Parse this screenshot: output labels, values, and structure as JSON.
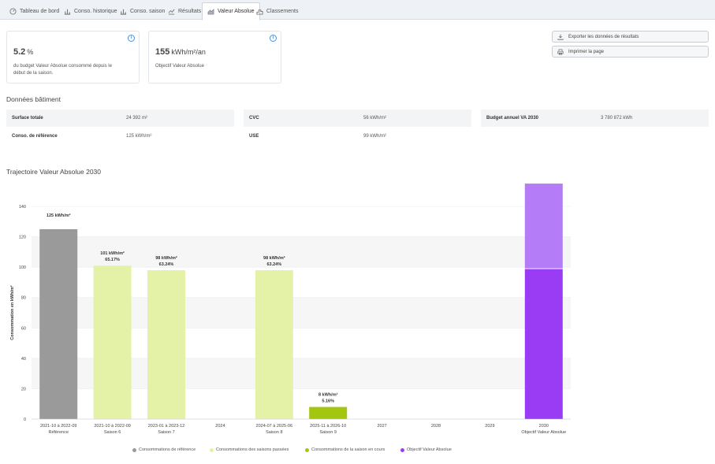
{
  "tabs": [
    {
      "label": "Tableau de bord",
      "icon": "dashboard-icon",
      "active": false
    },
    {
      "label": "Conso. historique",
      "icon": "bar-chart-icon",
      "active": false
    },
    {
      "label": "Conso. saison",
      "icon": "bar-chart-icon",
      "active": false
    },
    {
      "label": "Résultats",
      "icon": "line-chart-icon",
      "active": false
    },
    {
      "label": "Valeur Absolue",
      "icon": "area-chart-icon",
      "active": true
    },
    {
      "label": "Classements",
      "icon": "podium-icon",
      "active": false
    }
  ],
  "kpis": [
    {
      "value": "5.2",
      "unit": "%",
      "desc_line1": "du budget Valeur Absolue consommé depuis le",
      "desc_line2": "début de la saison."
    },
    {
      "value": "155",
      "unit": "kWh/m²/an",
      "desc_line1": "Objectif Valeur Absolue",
      "desc_line2": ""
    }
  ],
  "actions": {
    "export_label": "Exporter les données de résultats",
    "print_label": "Imprimer la page"
  },
  "building": {
    "title": "Données bâtiment",
    "rows": [
      [
        {
          "key": "Surface totale",
          "value": "24 392 m²"
        },
        {
          "key": "CVC",
          "value": "56 kWh/m²"
        },
        {
          "key": "Budget annuel VA 2030",
          "value": "3 780 872 kWh"
        }
      ],
      [
        {
          "key": "Conso. de référence",
          "value": "125 kWh/m²"
        },
        {
          "key": "USE",
          "value": "99 kWh/m²"
        }
      ]
    ]
  },
  "chart_title": "Trajectoire Valeur Absolue 2030",
  "colors": {
    "reference": "#9a9a9a",
    "past": "#e4f2a8",
    "current": "#a3c611",
    "objective": "#9b3cf5",
    "objective_light": "#b47df7"
  },
  "chart_data": {
    "type": "bar",
    "ylabel": "Consommation en kWh/m²",
    "ylim": [
      0,
      140
    ],
    "yticks": [
      0,
      20,
      40,
      60,
      80,
      100,
      120,
      140
    ],
    "categories": [
      {
        "line1": "2021-10 à 2022-09",
        "line2": "Référence"
      },
      {
        "line1": "2021-10 à 2022-09",
        "line2": "Saison 6"
      },
      {
        "line1": "2023-01 à 2023-12",
        "line2": "Saison 7"
      },
      {
        "line1": "2024",
        "line2": ""
      },
      {
        "line1": "2024-07 à 2025-06",
        "line2": "Saison 8"
      },
      {
        "line1": "2025-11 à 2026-10",
        "line2": "Saison 9"
      },
      {
        "line1": "2027",
        "line2": ""
      },
      {
        "line1": "2028",
        "line2": ""
      },
      {
        "line1": "2029",
        "line2": ""
      },
      {
        "line1": "2030",
        "line2": "Objectif Valeur Absolue"
      }
    ],
    "bars": [
      {
        "index": 0,
        "value": 125,
        "kind": "reference",
        "label1": "125 kWh/m²",
        "label2": ""
      },
      {
        "index": 1,
        "value": 101,
        "kind": "past",
        "label1": "101 kWh/m²",
        "label2": "65.17%"
      },
      {
        "index": 2,
        "value": 98,
        "kind": "past",
        "label1": "98 kWh/m²",
        "label2": "63.24%"
      },
      {
        "index": 4,
        "value": 98,
        "kind": "past",
        "label1": "98 kWh/m²",
        "label2": "63.24%"
      },
      {
        "index": 5,
        "value": 8,
        "kind": "current",
        "label1": "8 kWh/m²",
        "label2": "5.16%"
      },
      {
        "index": 9,
        "value": 99,
        "top": 155,
        "kind": "objective",
        "label1": "",
        "label2": ""
      }
    ],
    "legend": [
      {
        "label": "Consommations de référence",
        "kind": "reference"
      },
      {
        "label": "Consommations des saisons passées",
        "kind": "past"
      },
      {
        "label": "Consommations de la saison en cours",
        "kind": "current"
      },
      {
        "label": "Objectif Valeur Absolue",
        "kind": "objective"
      }
    ]
  }
}
